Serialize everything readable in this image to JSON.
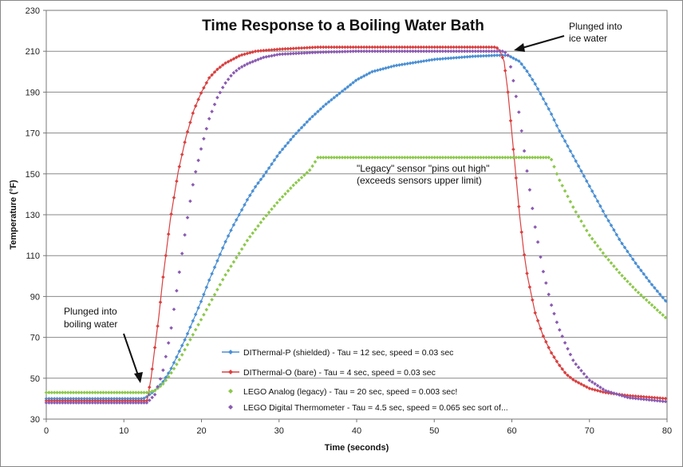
{
  "chart_data": {
    "type": "line",
    "title": "Time Response to a Boiling Water Bath",
    "xlabel": "Time (seconds)",
    "ylabel": "Temperature (°F)",
    "xlim": [
      0,
      80
    ],
    "ylim": [
      30,
      230
    ],
    "x_ticks": [
      "0",
      "10",
      "20",
      "30",
      "40",
      "50",
      "60",
      "70",
      "80"
    ],
    "y_ticks": [
      "30",
      "50",
      "70",
      "90",
      "110",
      "130",
      "150",
      "170",
      "190",
      "210",
      "230"
    ],
    "grid": "horizontal",
    "legend_position": "bottom-left-center",
    "series": [
      {
        "name": "DIThermal-P (shielded) - Tau = 12 sec, speed = 0.03 sec",
        "color": "#4a8fd4",
        "marker": "diamond",
        "x": [
          0,
          12.5,
          13,
          14,
          15,
          16,
          17,
          18,
          19,
          20,
          21,
          22,
          23,
          24,
          25,
          26,
          27,
          28,
          30,
          32,
          34,
          36,
          38,
          40,
          42,
          45,
          50,
          55,
          58,
          59.5,
          60,
          61,
          62,
          63,
          64,
          65,
          66,
          67,
          68,
          70,
          72,
          74,
          76,
          78,
          80
        ],
        "y": [
          40,
          40,
          41,
          44,
          48,
          54,
          62,
          70,
          79,
          88,
          98,
          107,
          116,
          124,
          131,
          138,
          144,
          149,
          160,
          169,
          177,
          184,
          190,
          196,
          200,
          203,
          206,
          207.5,
          208,
          208,
          207,
          205,
          200,
          194,
          187,
          180,
          172,
          165,
          158,
          144,
          130,
          117,
          106,
          96,
          87
        ]
      },
      {
        "name": "DIThermal-O (bare) - Tau = 4 sec, speed = 0.03 sec",
        "color": "#d94040",
        "marker": "diamond",
        "x": [
          0,
          13,
          13.5,
          14,
          14.5,
          15,
          16,
          17,
          18,
          19,
          20,
          21,
          22,
          23,
          24,
          25,
          27,
          30,
          35,
          40,
          45,
          50,
          55,
          58,
          58.5,
          59,
          59.5,
          60,
          60.5,
          61,
          61.5,
          62,
          63,
          64,
          65,
          66,
          67,
          68,
          70,
          72,
          75,
          80
        ],
        "y": [
          39,
          39,
          50,
          65,
          80,
          98,
          128,
          151,
          168,
          181,
          190,
          197,
          201,
          204,
          206,
          208,
          210,
          211,
          212,
          212,
          212,
          212,
          212,
          212,
          210,
          205,
          190,
          170,
          150,
          130,
          113,
          100,
          82,
          71,
          63,
          57,
          52,
          49,
          45,
          43,
          41.5,
          40
        ]
      },
      {
        "name": "LEGO Analog (legacy) - Tau = 20 sec, speed = 0.003 sec!",
        "color": "#8cc84b",
        "marker": "diamond",
        "x": [
          0,
          13,
          14,
          15,
          16,
          17,
          18,
          19,
          20,
          21,
          22,
          23,
          24,
          25,
          26,
          28,
          30,
          32,
          34,
          35,
          40,
          45,
          50,
          55,
          60,
          65,
          66,
          68,
          70,
          72,
          74,
          76,
          78,
          80
        ],
        "y": [
          43,
          43,
          44,
          47,
          52,
          58,
          65,
          72,
          79,
          86,
          93,
          100,
          106,
          112,
          118,
          128,
          137,
          145,
          152,
          158,
          158,
          158,
          158,
          158,
          158,
          158,
          148,
          133,
          120,
          110,
          101,
          93,
          86,
          79
        ]
      },
      {
        "name": "LEGO Digital Thermometer - Tau = 4.5 sec, speed = 0.065 sec sort of...",
        "color": "#8a5bb1",
        "marker": "diamond",
        "x": [
          0,
          13,
          14,
          15,
          16,
          17,
          18,
          19,
          20,
          21,
          22,
          23,
          24,
          25,
          26,
          28,
          30,
          35,
          40,
          45,
          50,
          55,
          59,
          59.5,
          60,
          61,
          62,
          63,
          64,
          65,
          66,
          67,
          68,
          70,
          72,
          75,
          80
        ],
        "y": [
          38,
          38,
          42,
          53,
          72,
          98,
          124,
          147,
          163,
          177,
          187,
          194,
          199,
          202,
          204,
          207,
          208.5,
          209.5,
          210,
          210,
          210,
          210,
          210,
          208,
          200,
          178,
          150,
          124,
          103,
          87,
          75,
          66,
          58,
          49,
          44,
          40.5,
          38.5
        ]
      }
    ],
    "annotations": [
      {
        "id": "plunged-ice",
        "lines": [
          "Plunged into",
          "ice water"
        ]
      },
      {
        "id": "plunged-boiling",
        "lines": [
          "Plunged into",
          "boiling water"
        ]
      },
      {
        "id": "legacy-note",
        "lines": [
          "\"Legacy\" sensor \"pins out high\"",
          "(exceeds sensors upper limit)"
        ]
      }
    ]
  }
}
